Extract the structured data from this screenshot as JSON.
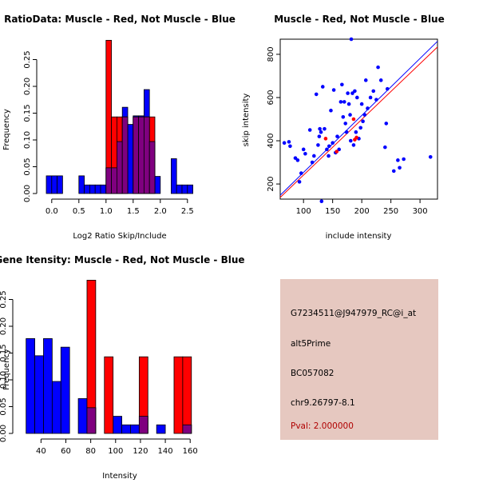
{
  "colors": {
    "muscle": "#ff0000",
    "not_muscle": "#0000ff",
    "overlap": "#7f007f",
    "bar_outline": "#000000",
    "info_bg": "#e6c8c0",
    "pval_text": "#b00000"
  },
  "info_panel": {
    "probe_id": "G7234511@J947979_RC@i_at",
    "event_type": "alt5Prime",
    "accession": "BC057082",
    "location": "chr9.26797-8.1",
    "pval": "Pval: 2.000000"
  },
  "chart_data": [
    {
      "id": "ratio_hist",
      "type": "bar",
      "title": "RatioData: Muscle - Red, Not Muscle - Blue",
      "xlabel": "Log2 Ratio Skip/Include",
      "ylabel": "Frequency",
      "xlim": [
        -0.1,
        2.65
      ],
      "ylim": [
        0,
        0.3
      ],
      "xticks": [
        {
          "v": 0.0,
          "label": "0.0"
        },
        {
          "v": 0.5,
          "label": "0.5"
        },
        {
          "v": 1.0,
          "label": "1.0"
        },
        {
          "v": 1.5,
          "label": "1.5"
        },
        {
          "v": 2.0,
          "label": "2.0"
        },
        {
          "v": 2.5,
          "label": "2.5"
        }
      ],
      "yticks": [
        {
          "v": 0.0,
          "label": "0.00"
        },
        {
          "v": 0.05,
          "label": "0.05"
        },
        {
          "v": 0.1,
          "label": "0.10"
        },
        {
          "v": 0.15,
          "label": "0.15"
        },
        {
          "v": 0.2,
          "label": "0.20"
        },
        {
          "v": 0.25,
          "label": "0.25"
        }
      ],
      "series": [
        {
          "name": "Not Muscle",
          "color": "#0000ff",
          "bins": [
            [
              -0.1,
              0.0,
              0.033
            ],
            [
              0.0,
              0.1,
              0.033
            ],
            [
              0.1,
              0.2,
              0.033
            ],
            [
              0.2,
              0.3,
              0.0
            ],
            [
              0.3,
              0.4,
              0.0
            ],
            [
              0.4,
              0.5,
              0.0
            ],
            [
              0.5,
              0.6,
              0.033
            ],
            [
              0.6,
              0.7,
              0.016
            ],
            [
              0.7,
              0.8,
              0.016
            ],
            [
              0.8,
              0.9,
              0.016
            ],
            [
              0.9,
              1.0,
              0.016
            ],
            [
              1.0,
              1.1,
              0.048
            ],
            [
              1.1,
              1.2,
              0.048
            ],
            [
              1.2,
              1.3,
              0.097
            ],
            [
              1.3,
              1.4,
              0.161
            ],
            [
              1.4,
              1.5,
              0.129
            ],
            [
              1.5,
              1.6,
              0.145
            ],
            [
              1.6,
              1.7,
              0.145
            ],
            [
              1.7,
              1.8,
              0.194
            ],
            [
              1.8,
              1.9,
              0.097
            ],
            [
              1.9,
              2.0,
              0.032
            ],
            [
              2.0,
              2.1,
              0.0
            ],
            [
              2.1,
              2.2,
              0.0
            ],
            [
              2.2,
              2.3,
              0.065
            ],
            [
              2.3,
              2.4,
              0.016
            ],
            [
              2.4,
              2.5,
              0.016
            ],
            [
              2.5,
              2.6,
              0.016
            ]
          ]
        },
        {
          "name": "Muscle",
          "color": "#ff0000",
          "bins": [
            [
              1.0,
              1.1,
              0.286
            ],
            [
              1.1,
              1.2,
              0.143
            ],
            [
              1.2,
              1.3,
              0.143
            ],
            [
              1.3,
              1.4,
              0.143
            ],
            [
              1.4,
              1.5,
              0.0
            ],
            [
              1.5,
              1.6,
              0.143
            ],
            [
              1.6,
              1.7,
              0.143
            ],
            [
              1.7,
              1.8,
              0.143
            ],
            [
              1.8,
              1.9,
              0.143
            ]
          ]
        }
      ]
    },
    {
      "id": "scatter",
      "type": "scatter",
      "title": "Muscle - Red, Not Muscle - Blue",
      "xlabel": "include intensity",
      "ylabel": "skip intensity",
      "xlim": [
        60,
        330
      ],
      "ylim": [
        130,
        870
      ],
      "xticks": [
        {
          "v": 100,
          "label": "100"
        },
        {
          "v": 150,
          "label": "150"
        },
        {
          "v": 200,
          "label": "200"
        },
        {
          "v": 250,
          "label": "250"
        },
        {
          "v": 300,
          "label": "300"
        }
      ],
      "yticks": [
        {
          "v": 200,
          "label": "200"
        },
        {
          "v": 400,
          "label": "400"
        },
        {
          "v": 600,
          "label": "600"
        },
        {
          "v": 800,
          "label": "800"
        }
      ],
      "series": [
        {
          "name": "Not Muscle",
          "color": "#0000ff",
          "points": [
            [
              67,
              390
            ],
            [
              75,
              395
            ],
            [
              77,
              375
            ],
            [
              86,
              320
            ],
            [
              90,
              310
            ],
            [
              93,
              210
            ],
            [
              96,
              250
            ],
            [
              100,
              360
            ],
            [
              103,
              340
            ],
            [
              111,
              450
            ],
            [
              115,
              300
            ],
            [
              118,
              330
            ],
            [
              122,
              615
            ],
            [
              125,
              380
            ],
            [
              127,
              420
            ],
            [
              128,
              455
            ],
            [
              130,
              440
            ],
            [
              131,
              120
            ],
            [
              133,
              650
            ],
            [
              136,
              455
            ],
            [
              140,
              360
            ],
            [
              143,
              330
            ],
            [
              144,
              375
            ],
            [
              147,
              540
            ],
            [
              150,
              390
            ],
            [
              152,
              635
            ],
            [
              155,
              345
            ],
            [
              158,
              420
            ],
            [
              161,
              360
            ],
            [
              164,
              580
            ],
            [
              166,
              660
            ],
            [
              168,
              510
            ],
            [
              170,
              580
            ],
            [
              172,
              480
            ],
            [
              174,
              440
            ],
            [
              176,
              620
            ],
            [
              178,
              570
            ],
            [
              180,
              520
            ],
            [
              181,
              400
            ],
            [
              182,
              870
            ],
            [
              184,
              620
            ],
            [
              186,
              380
            ],
            [
              188,
              630
            ],
            [
              190,
              440
            ],
            [
              192,
              600
            ],
            [
              195,
              410
            ],
            [
              198,
              460
            ],
            [
              200,
              570
            ],
            [
              202,
              490
            ],
            [
              205,
              520
            ],
            [
              207,
              680
            ],
            [
              210,
              550
            ],
            [
              215,
              600
            ],
            [
              220,
              630
            ],
            [
              225,
              590
            ],
            [
              228,
              740
            ],
            [
              233,
              680
            ],
            [
              240,
              370
            ],
            [
              242,
              480
            ],
            [
              244,
              640
            ],
            [
              255,
              260
            ],
            [
              262,
              310
            ],
            [
              265,
              275
            ],
            [
              272,
              315
            ],
            [
              318,
              325
            ]
          ]
        },
        {
          "name": "Muscle",
          "color": "#ff0000",
          "points": [
            [
              138,
              410
            ],
            [
              157,
              350
            ],
            [
              186,
              500
            ],
            [
              188,
              405
            ],
            [
              191,
              415
            ]
          ]
        }
      ],
      "lines": [
        {
          "name": "Not Muscle fit",
          "color": "#0000ff",
          "from": [
            60,
            148
          ],
          "to": [
            330,
            860
          ]
        },
        {
          "name": "Muscle fit",
          "color": "#ff0000",
          "from": [
            60,
            138
          ],
          "to": [
            330,
            834
          ]
        }
      ]
    },
    {
      "id": "intensity_hist",
      "type": "bar",
      "title": "Gene Itensity: Muscle - Red, Not Muscle - Blue",
      "xlabel": "Intensity",
      "ylabel": "Frequency",
      "xlim": [
        25,
        165
      ],
      "ylim": [
        0,
        0.3
      ],
      "xticks": [
        {
          "v": 40,
          "label": "40"
        },
        {
          "v": 60,
          "label": "60"
        },
        {
          "v": 80,
          "label": "80"
        },
        {
          "v": 100,
          "label": "100"
        },
        {
          "v": 120,
          "label": "120"
        },
        {
          "v": 140,
          "label": "140"
        },
        {
          "v": 160,
          "label": "160"
        }
      ],
      "yticks": [
        {
          "v": 0.0,
          "label": "0.00"
        },
        {
          "v": 0.05,
          "label": "0.05"
        },
        {
          "v": 0.1,
          "label": "0.10"
        },
        {
          "v": 0.15,
          "label": "0.15"
        },
        {
          "v": 0.2,
          "label": "0.20"
        },
        {
          "v": 0.25,
          "label": "0.25"
        }
      ],
      "series": [
        {
          "name": "Not Muscle",
          "color": "#0000ff",
          "bins": [
            [
              28,
              35,
              0.177
            ],
            [
              35,
              42,
              0.145
            ],
            [
              42,
              49,
              0.177
            ],
            [
              49,
              56,
              0.097
            ],
            [
              56,
              63,
              0.161
            ],
            [
              63,
              70,
              0.0
            ],
            [
              70,
              77,
              0.065
            ],
            [
              77,
              84,
              0.048
            ],
            [
              84,
              91,
              0.0
            ],
            [
              91,
              98,
              0.0
            ],
            [
              98,
              105,
              0.032
            ],
            [
              105,
              112,
              0.016
            ],
            [
              112,
              119,
              0.016
            ],
            [
              119,
              126,
              0.032
            ],
            [
              126,
              133,
              0.0
            ],
            [
              133,
              140,
              0.016
            ],
            [
              140,
              147,
              0.0
            ],
            [
              147,
              154,
              0.0
            ],
            [
              154,
              161,
              0.016
            ]
          ]
        },
        {
          "name": "Muscle",
          "color": "#ff0000",
          "bins": [
            [
              77,
              84,
              0.286
            ],
            [
              91,
              98,
              0.143
            ],
            [
              119,
              126,
              0.143
            ],
            [
              147,
              154,
              0.143
            ],
            [
              154,
              161,
              0.143
            ],
            [
              161,
              163,
              0.0
            ]
          ]
        }
      ]
    }
  ]
}
